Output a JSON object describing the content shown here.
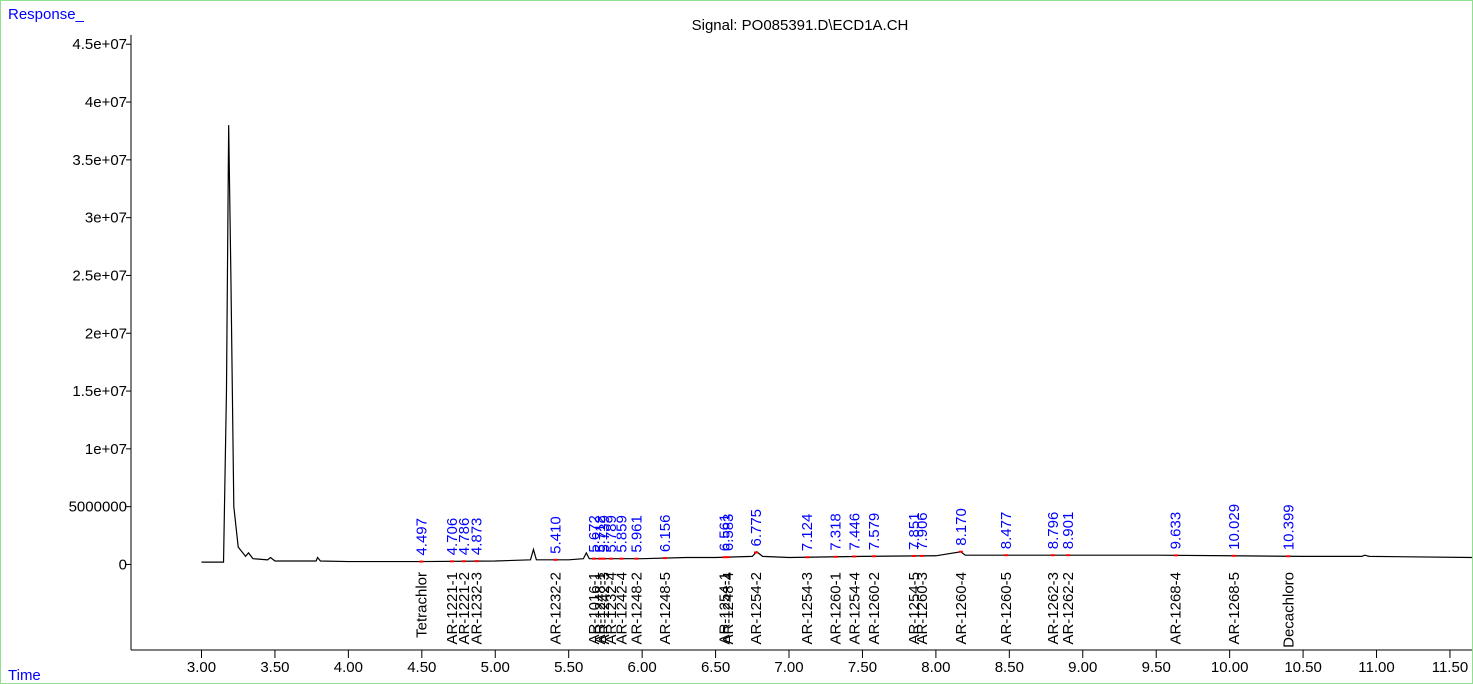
{
  "chart_data": {
    "type": "line",
    "title": "Signal: PO085391.D\\ECD1A.CH",
    "ylabel": "Response_",
    "xlabel": "Time",
    "color": "#000000",
    "peak_label_color": "#0000ff",
    "peak_marker_color": "#ff0000",
    "xlim": [
      2.52,
      11.65
    ],
    "ylim": [
      -7400000,
      45800000
    ],
    "xticks": [
      {
        "value": 3.0,
        "label": "3.00"
      },
      {
        "value": 3.5,
        "label": "3.50"
      },
      {
        "value": 4.0,
        "label": "4.00"
      },
      {
        "value": 4.5,
        "label": "4.50"
      },
      {
        "value": 5.0,
        "label": "5.00"
      },
      {
        "value": 5.5,
        "label": "5.50"
      },
      {
        "value": 6.0,
        "label": "6.00"
      },
      {
        "value": 6.5,
        "label": "6.50"
      },
      {
        "value": 7.0,
        "label": "7.00"
      },
      {
        "value": 7.5,
        "label": "7.50"
      },
      {
        "value": 8.0,
        "label": "8.00"
      },
      {
        "value": 8.5,
        "label": "8.50"
      },
      {
        "value": 9.0,
        "label": "9.00"
      },
      {
        "value": 9.5,
        "label": "9.50"
      },
      {
        "value": 10.0,
        "label": "10.00"
      },
      {
        "value": 10.5,
        "label": "10.50"
      },
      {
        "value": 11.0,
        "label": "11.00"
      },
      {
        "value": 11.5,
        "label": "11.50"
      }
    ],
    "yticks": [
      0,
      5000000,
      {
        "value": 10000000,
        "label": "1e+07"
      },
      {
        "value": 15000000,
        "label": "1.5e+07"
      },
      {
        "value": 20000000,
        "label": "2e+07"
      },
      {
        "value": 25000000,
        "label": "2.5e+07"
      },
      {
        "value": 30000000,
        "label": "3e+07"
      },
      {
        "value": 35000000,
        "label": "3.5e+07"
      },
      {
        "value": 40000000,
        "label": "4e+07"
      },
      {
        "value": 45000000,
        "label": "4.5e+07"
      }
    ],
    "x": [
      3.0,
      3.15,
      3.17,
      3.185,
      3.2,
      3.22,
      3.25,
      3.3,
      3.32,
      3.35,
      3.45,
      3.47,
      3.5,
      3.78,
      3.79,
      3.81,
      4.0,
      4.5,
      5.0,
      5.24,
      5.26,
      5.28,
      5.5,
      5.6,
      5.62,
      5.64,
      6.0,
      6.3,
      6.5,
      6.75,
      6.78,
      6.82,
      7.0,
      7.5,
      8.0,
      8.17,
      8.2,
      8.5,
      9.0,
      9.5,
      10.0,
      10.5,
      10.9,
      10.92,
      10.95,
      11.65
    ],
    "values": [
      200000,
      200000,
      15000000,
      38000000,
      25000000,
      5000000,
      1500000,
      700000,
      1000000,
      500000,
      400000,
      600000,
      300000,
      300000,
      600000,
      300000,
      250000,
      250000,
      300000,
      400000,
      1300000,
      400000,
      400000,
      500000,
      1000000,
      500000,
      500000,
      600000,
      600000,
      700000,
      1100000,
      700000,
      600000,
      700000,
      750000,
      1100000,
      800000,
      800000,
      800000,
      800000,
      750000,
      700000,
      700000,
      800000,
      700000,
      600000
    ],
    "peaks": {
      "values": [
        4.497,
        4.706,
        4.786,
        4.873,
        5.41,
        5.672,
        5.712,
        5.739,
        5.789,
        5.859,
        5.961,
        6.156,
        6.561,
        6.583,
        6.775,
        7.124,
        7.318,
        7.446,
        7.579,
        7.851,
        7.906,
        8.17,
        8.477,
        8.796,
        8.901,
        9.633,
        10.029,
        10.399
      ],
      "value_labels": [
        "4.497",
        "4.706",
        "4.786",
        "4.873",
        "5.410",
        "5.672",
        "5.712",
        "5.739",
        "5.789",
        "5.859",
        "5.961",
        "6.156",
        "6.561",
        "6.583",
        "6.775",
        "7.124",
        "7.318",
        "7.446",
        "7.579",
        "7.851",
        "7.906",
        "8.170",
        "8.477",
        "8.796",
        "8.901",
        "9.633",
        "10.029",
        "10.399"
      ],
      "names": [
        "Tetrachlor",
        "AR-1221-1",
        "AR-1221-2",
        "AR-1232-3",
        "AR-1232-2",
        "AR-1016-1",
        "AR-1248-1",
        "AR-1242-3",
        "AR-1232-4",
        "AR-1242-4",
        "AR-1248-2",
        "AR-1248-5",
        "AR-1254-1",
        "AR-1248-4",
        "AR-1254-2",
        "AR-1254-3",
        "AR-1260-1",
        "AR-1254-4",
        "AR-1260-2",
        "AR-1254-5",
        "AR-1260-3",
        "AR-1260-4",
        "AR-1260-5",
        "AR-1262-3",
        "AR-1262-2",
        "AR-1268-4",
        "AR-1268-5",
        "Decachloro"
      ]
    }
  }
}
